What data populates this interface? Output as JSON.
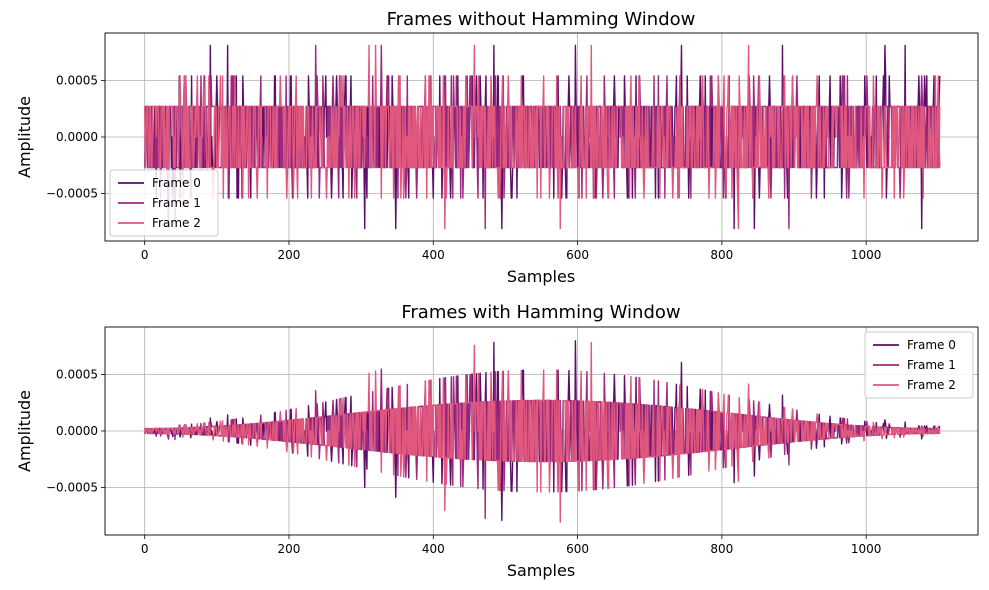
{
  "chart_data": [
    {
      "type": "line",
      "title": "Frames without Hamming Window",
      "xlabel": "Samples",
      "ylabel": "Amplitude",
      "xlim": [
        -55,
        1155
      ],
      "ylim": [
        -0.00092,
        0.00092
      ],
      "xticks": [
        0,
        200,
        400,
        600,
        800,
        1000
      ],
      "xtick_labels": [
        "0",
        "200",
        "400",
        "600",
        "800",
        "1000"
      ],
      "yticks": [
        0.0005,
        0.0,
        -0.0005
      ],
      "ytick_labels": [
        "0.0005",
        "0.0000",
        "−0.0005"
      ],
      "grid": true,
      "legend_position": "lower-left",
      "windowed": false,
      "n_samples": 1103,
      "amplitude_levels": [
        0.00027,
        0.00054,
        0.00081
      ],
      "series": [
        {
          "name": "Frame 0",
          "color": "#5b0f6b",
          "seed": 11
        },
        {
          "name": "Frame 1",
          "color": "#9b2a7f",
          "seed": 23
        },
        {
          "name": "Frame 2",
          "color": "#e0587e",
          "seed": 37
        }
      ]
    },
    {
      "type": "line",
      "title": "Frames with Hamming Window",
      "xlabel": "Samples",
      "ylabel": "Amplitude",
      "xlim": [
        -55,
        1155
      ],
      "ylim": [
        -0.00092,
        0.00092
      ],
      "xticks": [
        0,
        200,
        400,
        600,
        800,
        1000
      ],
      "xtick_labels": [
        "0",
        "200",
        "400",
        "600",
        "800",
        "1000"
      ],
      "yticks": [
        0.0005,
        0.0,
        -0.0005
      ],
      "ytick_labels": [
        "0.0005",
        "0.0000",
        "−0.0005"
      ],
      "grid": true,
      "legend_position": "upper-right",
      "windowed": true,
      "n_samples": 1103,
      "amplitude_levels": [
        0.00027,
        0.00054,
        0.00081
      ],
      "series": [
        {
          "name": "Frame 0",
          "color": "#5b0f6b",
          "seed": 11
        },
        {
          "name": "Frame 1",
          "color": "#9b2a7f",
          "seed": 23
        },
        {
          "name": "Frame 2",
          "color": "#e0587e",
          "seed": 37
        }
      ]
    }
  ]
}
